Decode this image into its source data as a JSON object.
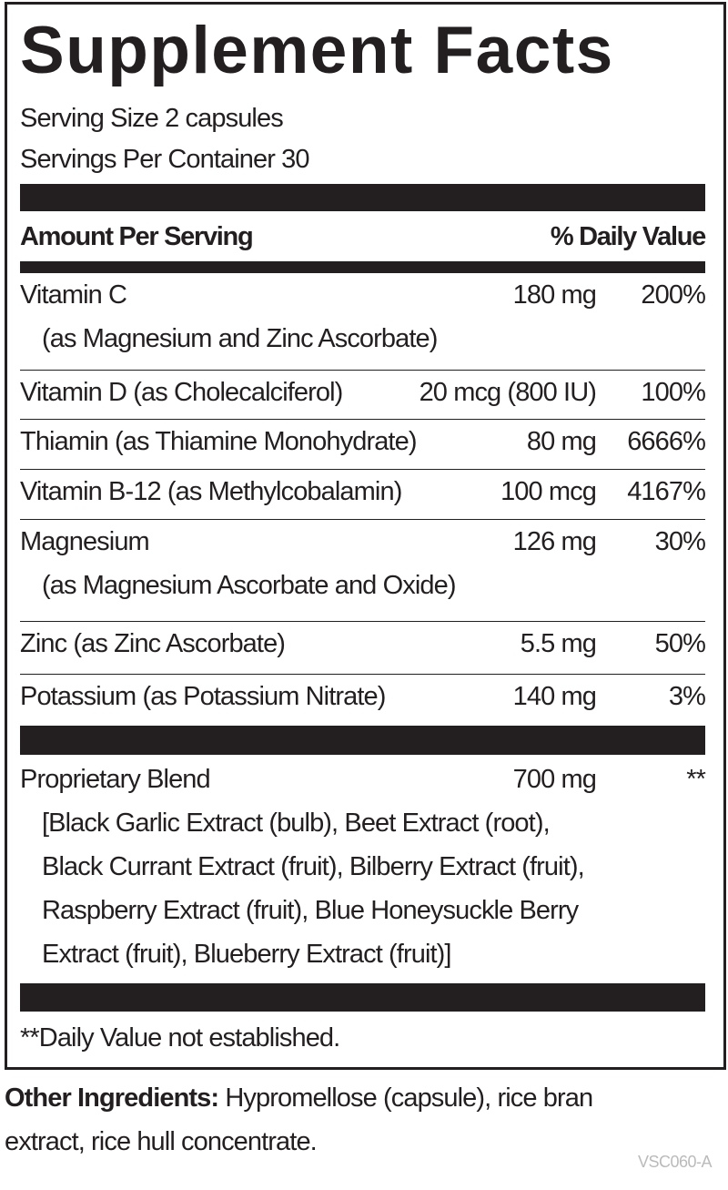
{
  "title": "Supplement Facts",
  "serving_size": "Serving Size 2 capsules",
  "servings_per_container": "Servings Per Container 30",
  "header": {
    "amount": "Amount Per Serving",
    "daily_value": "% Daily Value"
  },
  "rows": [
    {
      "name": [
        "Vitamin C",
        "(as Magnesium and Zinc Ascorbate)"
      ],
      "amount": "180 mg",
      "daily_value": "200%"
    },
    {
      "name": [
        "Vitamin D (as Cholecalciferol)"
      ],
      "amount": "20 mcg (800 IU)",
      "daily_value": "100%"
    },
    {
      "name": [
        "Thiamin (as Thiamine Monohydrate)"
      ],
      "amount": "80 mg",
      "daily_value": "6666%"
    },
    {
      "name": [
        "Vitamin B-12 (as Methylcobalamin)"
      ],
      "amount": "100 mcg",
      "daily_value": "4167%"
    },
    {
      "name": [
        "Magnesium",
        "(as Magnesium Ascorbate and Oxide)"
      ],
      "amount": "126 mg",
      "daily_value": "30%"
    },
    {
      "name": [
        "Zinc (as Zinc Ascorbate)"
      ],
      "amount": "5.5 mg",
      "daily_value": "50%"
    },
    {
      "name": [
        "Potassium (as Potassium Nitrate)"
      ],
      "amount": "140 mg",
      "daily_value": "3%"
    }
  ],
  "blend": {
    "name": "Proprietary Blend",
    "amount": "700 mg",
    "daily_value": "**",
    "ingredients": [
      "[Black Garlic Extract (bulb), Beet Extract (root),",
      "Black Currant Extract (fruit), Bilberry Extract (fruit),",
      "Raspberry Extract (fruit), Blue Honeysuckle Berry",
      "Extract (fruit), Blueberry Extract (fruit)]"
    ]
  },
  "footnote": "**Daily Value not established.",
  "other_ingredients": {
    "label": "Other Ingredients:",
    "text": "Hypromellose (capsule), rice bran extract, rice hull concentrate."
  },
  "code": "VSC060-A"
}
